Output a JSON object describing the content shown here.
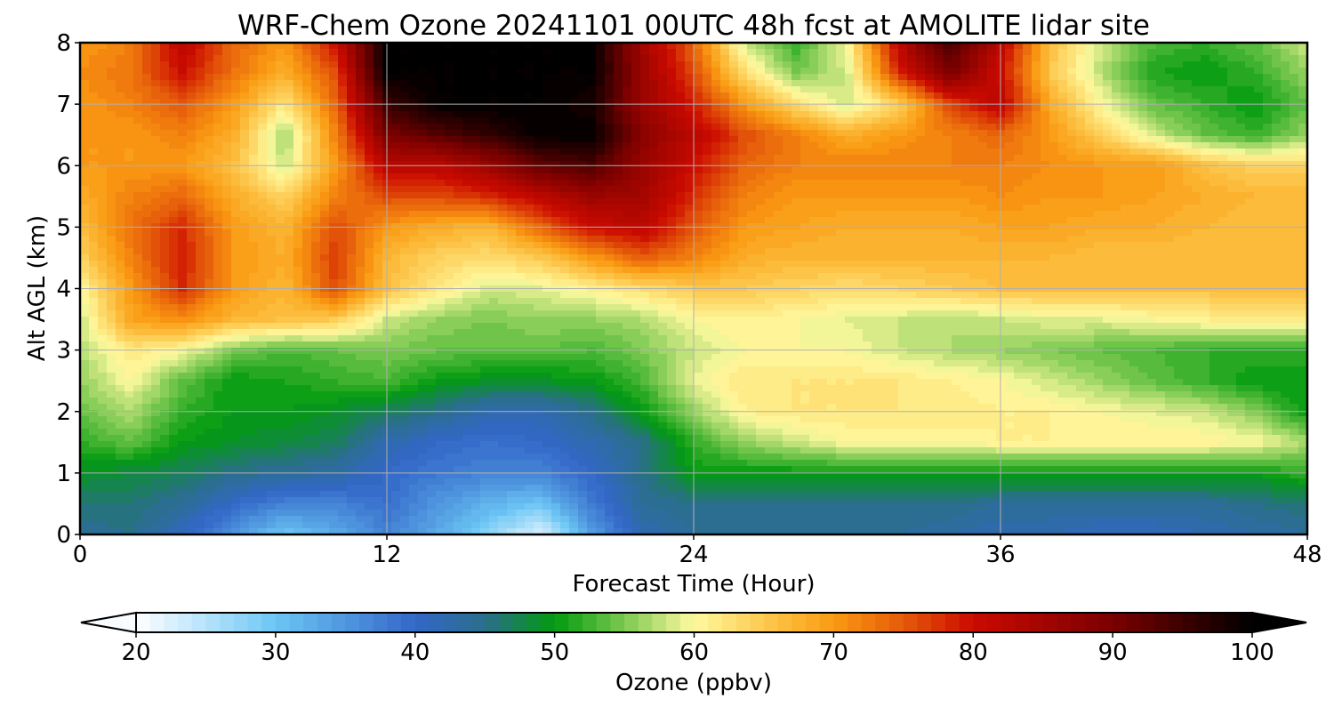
{
  "chart_data": {
    "type": "heatmap",
    "title": "WRF-Chem Ozone  20241101 00UTC 48h fcst at AMOLITE lidar site",
    "xlabel": "Forecast Time (Hour)",
    "ylabel": "Alt AGL (km)",
    "xlim": [
      0,
      48
    ],
    "ylim": [
      0,
      8
    ],
    "x_ticks": [
      0,
      12,
      24,
      36,
      48
    ],
    "y_ticks": [
      0,
      1,
      2,
      3,
      4,
      5,
      6,
      7,
      8
    ],
    "grid": true,
    "colorbar": {
      "label": "Ozone  (ppbv)",
      "range": [
        20,
        100
      ],
      "ticks": [
        20,
        30,
        40,
        50,
        60,
        70,
        80,
        90,
        100
      ],
      "extend": "both",
      "stops": [
        {
          "v": 20,
          "c": "#ffffff"
        },
        {
          "v": 30,
          "c": "#6cc6f5"
        },
        {
          "v": 40,
          "c": "#3367c8"
        },
        {
          "v": 45,
          "c": "#2a6f8c"
        },
        {
          "v": 50,
          "c": "#019a0e"
        },
        {
          "v": 55,
          "c": "#7cc951"
        },
        {
          "v": 60,
          "c": "#fffaa0"
        },
        {
          "v": 66,
          "c": "#fcc041"
        },
        {
          "v": 70,
          "c": "#fa9a12"
        },
        {
          "v": 75,
          "c": "#e55a0a"
        },
        {
          "v": 80,
          "c": "#cb0a00"
        },
        {
          "v": 90,
          "c": "#7a0000"
        },
        {
          "v": 100,
          "c": "#000000"
        }
      ]
    },
    "grid_x": [
      0,
      2,
      4,
      6,
      8,
      10,
      12,
      14,
      16,
      18,
      20,
      22,
      24,
      26,
      28,
      30,
      32,
      34,
      36,
      38,
      40,
      42,
      44,
      46,
      48
    ],
    "grid_y": [
      0,
      0.5,
      1,
      1.5,
      2,
      2.5,
      3,
      3.5,
      4,
      4.5,
      5,
      5.5,
      6,
      6.5,
      7,
      7.5,
      8
    ],
    "values": [
      [
        44,
        45,
        41,
        35,
        30,
        33,
        37,
        33,
        28,
        22,
        34,
        42,
        44,
        44,
        44,
        44,
        44,
        43,
        42,
        42,
        41,
        41,
        42,
        43,
        44
      ],
      [
        46,
        46,
        44,
        40,
        37,
        37,
        39,
        35,
        32,
        30,
        38,
        44,
        45,
        45,
        45,
        45,
        45,
        45,
        44,
        44,
        44,
        44,
        44,
        45,
        46
      ],
      [
        49,
        48,
        47,
        45,
        44,
        43,
        40,
        38,
        37,
        37,
        40,
        45,
        50,
        50,
        50,
        50,
        50,
        50,
        50,
        50,
        50,
        50,
        50,
        50,
        52
      ],
      [
        52,
        54,
        50,
        49,
        48,
        47,
        42,
        40,
        39,
        40,
        42,
        45,
        52,
        56,
        58,
        60,
        60,
        60,
        61,
        61,
        61,
        61,
        61,
        60,
        57
      ],
      [
        54,
        57,
        52,
        50,
        50,
        49,
        47,
        45,
        42,
        42,
        45,
        50,
        56,
        61,
        62,
        62,
        62,
        62,
        61,
        61,
        60,
        59,
        58,
        55,
        50
      ],
      [
        56,
        60,
        54,
        50,
        51,
        52,
        53,
        50,
        49,
        49,
        50,
        53,
        59,
        62,
        62,
        62,
        62,
        61,
        60,
        58,
        56,
        54,
        52,
        50,
        50
      ],
      [
        57,
        62,
        60,
        55,
        53,
        54,
        55,
        54,
        54,
        54,
        53,
        55,
        58,
        60,
        60,
        60,
        58,
        57,
        56,
        55,
        54,
        53,
        52,
        52,
        52
      ],
      [
        58,
        69,
        71,
        67,
        66,
        65,
        58,
        56,
        55,
        56,
        56,
        57,
        60,
        61,
        60,
        59,
        58,
        57,
        58,
        59,
        59,
        60,
        61,
        62,
        62
      ],
      [
        60,
        70,
        78,
        70,
        67,
        76,
        66,
        62,
        58,
        59,
        61,
        63,
        65,
        65,
        64,
        63,
        64,
        65,
        66,
        66,
        66,
        66,
        66,
        66,
        66
      ],
      [
        64,
        72,
        79,
        70,
        68,
        77,
        67,
        64,
        63,
        65,
        70,
        75,
        72,
        68,
        67,
        67,
        67,
        67,
        67,
        67,
        66,
        66,
        66,
        66,
        66
      ],
      [
        66,
        73,
        78,
        70,
        67,
        76,
        70,
        68,
        67,
        74,
        80,
        82,
        75,
        70,
        69,
        68,
        68,
        68,
        69,
        69,
        68,
        68,
        67,
        66,
        66
      ],
      [
        68,
        72,
        74,
        68,
        64,
        72,
        76,
        76,
        78,
        82,
        86,
        85,
        78,
        72,
        70,
        70,
        70,
        70,
        71,
        70,
        70,
        69,
        68,
        67,
        67
      ],
      [
        70,
        70,
        70,
        66,
        58,
        70,
        82,
        82,
        86,
        92,
        94,
        86,
        80,
        74,
        72,
        72,
        72,
        72,
        72,
        71,
        70,
        70,
        66,
        64,
        64
      ],
      [
        70,
        70,
        72,
        68,
        56,
        72,
        90,
        93,
        96,
        100,
        100,
        88,
        82,
        76,
        72,
        68,
        70,
        72,
        74,
        70,
        64,
        58,
        54,
        52,
        56
      ],
      [
        70,
        72,
        75,
        70,
        62,
        74,
        95,
        100,
        100,
        100,
        98,
        86,
        79,
        70,
        63,
        58,
        64,
        76,
        82,
        68,
        60,
        54,
        52,
        50,
        54
      ],
      [
        71,
        73,
        80,
        73,
        68,
        76,
        100,
        100,
        100,
        100,
        100,
        86,
        76,
        63,
        55,
        58,
        78,
        90,
        80,
        65,
        57,
        51,
        50,
        52,
        56
      ],
      [
        70,
        72,
        82,
        74,
        70,
        80,
        100,
        100,
        100,
        100,
        100,
        85,
        74,
        58,
        52,
        60,
        82,
        95,
        82,
        66,
        58,
        53,
        52,
        54,
        58
      ]
    ]
  }
}
